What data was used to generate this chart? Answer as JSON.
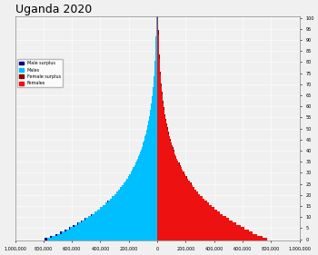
{
  "title": "Uganda 2020",
  "title_fontsize": 9,
  "background_color": "#f0f0f0",
  "male_color": "#00bfff",
  "female_color": "#ee1111",
  "male_surplus_color": "#00008b",
  "female_surplus_color": "#8b0000",
  "xlim": 1000000,
  "xticks": [
    -1000000,
    -800000,
    -600000,
    -400000,
    -200000,
    0,
    200000,
    400000,
    600000,
    800000,
    1000000
  ],
  "xticklabels": [
    "1,000,000",
    "800,000",
    "600,000",
    "400,000",
    "200,000",
    "0",
    "200,000",
    "400,000",
    "600,000",
    "800,000",
    "1,000,000"
  ],
  "ytick_step": 5,
  "legend_labels": [
    "Male surplus",
    "Males",
    "Female surplus",
    "Females"
  ],
  "legend_colors": [
    "#00008b",
    "#00bfff",
    "#8b0000",
    "#ee1111"
  ],
  "male_seed": 790000,
  "male_decay": 0.048,
  "female_seed": 775000,
  "female_decay": 0.047
}
